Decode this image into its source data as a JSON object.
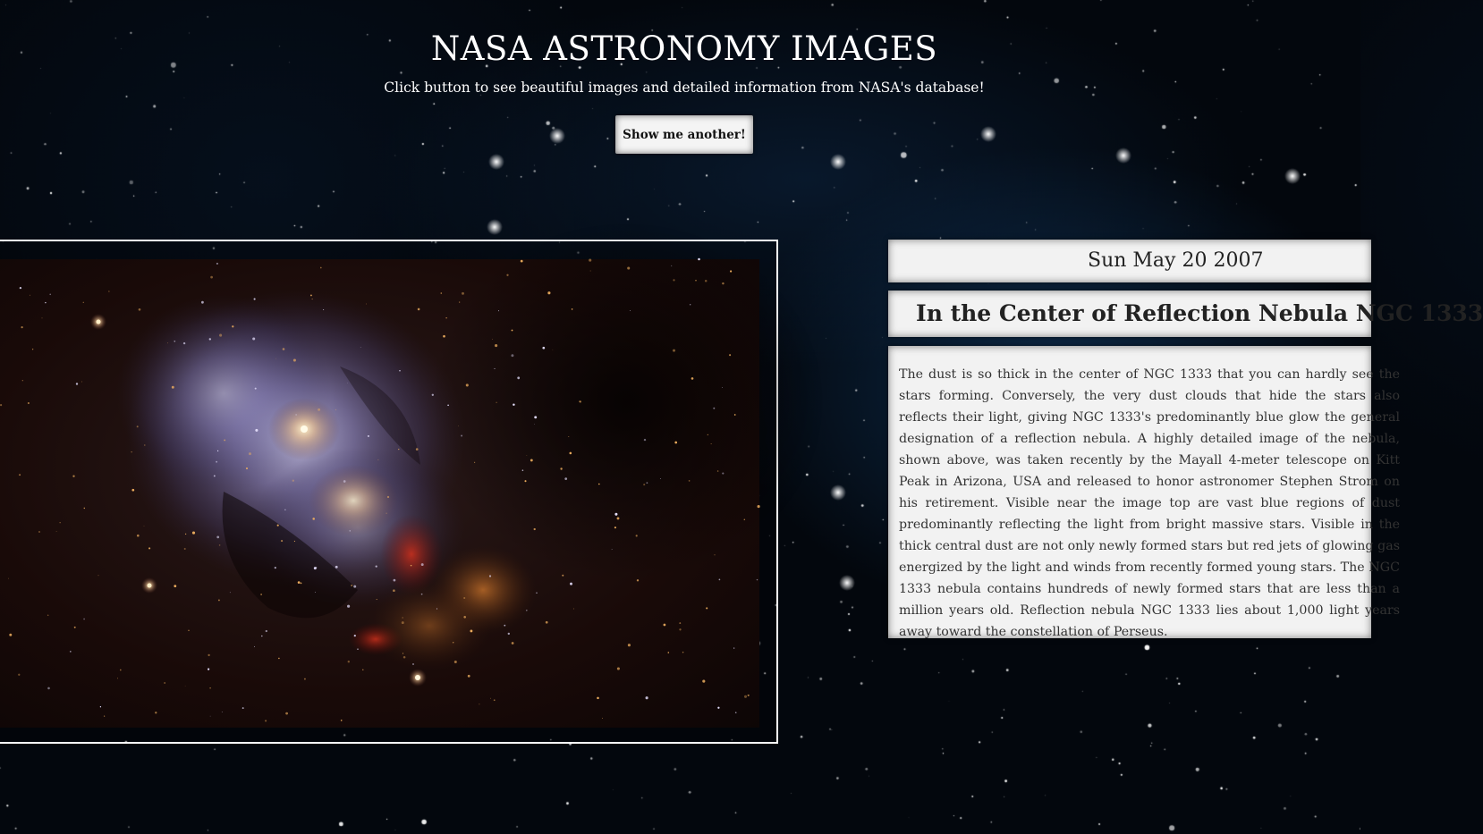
{
  "page": {
    "title": "NASA ASTRONOMY IMAGES",
    "subtitle": "Click button to see beautiful images and detailed information from NASA's database!",
    "button_label": "Show me another!"
  },
  "apod": {
    "date": "Sun May 20 2007",
    "title": "In the Center of Reflection Nebula NGC 1333",
    "explanation": "The dust is so thick in the center of NGC 1333 that you can hardly see the stars forming. Conversely, the very dust clouds that hide the stars also reflects their light, giving NGC 1333's predominantly blue glow the general designation of a reflection nebula. A highly detailed image of the nebula, shown above, was taken recently by the Mayall 4-meter telescope on Kitt Peak in Arizona, USA and released to honor astronomer Stephen Strom on his retirement. Visible near the image top are vast blue regions of dust predominantly reflecting the light from bright massive stars. Visible in the thick central dust are not only newly formed stars but red jets of glowing gas energized by the light and winds from recently formed young stars. The NGC 1333 nebula contains hundreds of newly formed stars that are less than a million years old. Reflection nebula NGC 1333 lies about 1,000 light years away toward the constellation of Perseus."
  },
  "colors": {
    "background": "#03070d",
    "panel": "#f2f2f2",
    "panel_text": "#333333",
    "heading_text": "#ffffff"
  }
}
